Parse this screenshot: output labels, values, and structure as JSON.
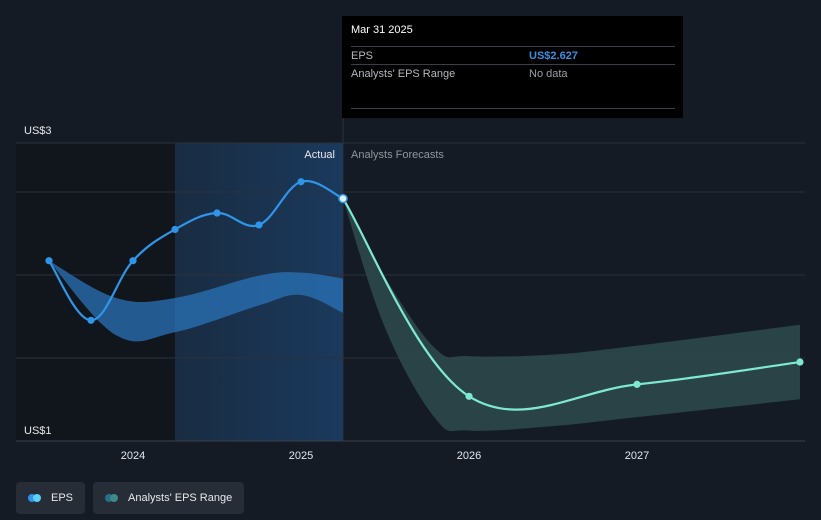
{
  "tooltip": {
    "date": "Mar 31 2025",
    "eps_label": "EPS",
    "eps_value": "US$2.627",
    "range_label": "Analysts' EPS Range",
    "range_value": "No data"
  },
  "region_labels": {
    "actual": "Actual",
    "forecast": "Analysts Forecasts"
  },
  "legend": {
    "eps": "EPS",
    "range": "Analysts' EPS Range"
  },
  "colors": {
    "background": "#151b24",
    "eps_line": "#2f95e8",
    "forecast_line": "#7ee8d3",
    "actual_band": "#2a73b8",
    "forecast_band": "#2e4a4c"
  },
  "chart_data": {
    "type": "line",
    "y_axis": {
      "ticks": [
        "US$1",
        "US$3"
      ],
      "ylim": [
        1,
        3
      ]
    },
    "x_axis": {
      "ticks": [
        "2024",
        "2025",
        "2026",
        "2027"
      ],
      "tick_values": [
        2024,
        2025,
        2026,
        2027
      ],
      "xlim": [
        2023.5,
        2027.97
      ]
    },
    "series": [
      {
        "name": "EPS",
        "points": [
          [
            2023.5,
            2.21
          ],
          [
            2023.75,
            1.81
          ],
          [
            2024.0,
            2.21
          ],
          [
            2024.25,
            2.42
          ],
          [
            2024.5,
            2.53
          ],
          [
            2024.75,
            2.45
          ],
          [
            2025.0,
            2.74
          ],
          [
            2025.25,
            2.627
          ]
        ]
      },
      {
        "name": "Analysts Forecasts",
        "points": [
          [
            2025.25,
            2.627
          ],
          [
            2026.0,
            1.3
          ],
          [
            2027.0,
            1.38
          ],
          [
            2027.97,
            1.53
          ]
        ]
      }
    ],
    "actual_range": {
      "upper": [
        [
          2023.5,
          2.21
        ],
        [
          2023.9,
          1.96
        ],
        [
          2024.25,
          1.96
        ],
        [
          2024.75,
          2.11
        ],
        [
          2025.0,
          2.13
        ],
        [
          2025.25,
          2.09
        ]
      ],
      "lower": [
        [
          2023.5,
          2.21
        ],
        [
          2023.9,
          1.71
        ],
        [
          2024.25,
          1.73
        ],
        [
          2024.75,
          1.91
        ],
        [
          2025.0,
          1.98
        ],
        [
          2025.25,
          1.86
        ]
      ]
    },
    "forecast_range": {
      "upper": [
        [
          2025.25,
          2.627
        ],
        [
          2025.5,
          2.1
        ],
        [
          2025.8,
          1.62
        ],
        [
          2026.0,
          1.57
        ],
        [
          2026.5,
          1.58
        ],
        [
          2027.0,
          1.64
        ],
        [
          2027.97,
          1.78
        ]
      ],
      "lower": [
        [
          2025.25,
          2.627
        ],
        [
          2025.5,
          1.76
        ],
        [
          2025.8,
          1.15
        ],
        [
          2026.0,
          1.07
        ],
        [
          2026.5,
          1.1
        ],
        [
          2027.0,
          1.16
        ],
        [
          2027.97,
          1.28
        ]
      ]
    },
    "highlight": {
      "past_shade_from": 2024.25,
      "past_shade_to": 2025.25,
      "cursor_at": 2025.25
    },
    "grid": true,
    "legend_position": "bottom-left"
  }
}
